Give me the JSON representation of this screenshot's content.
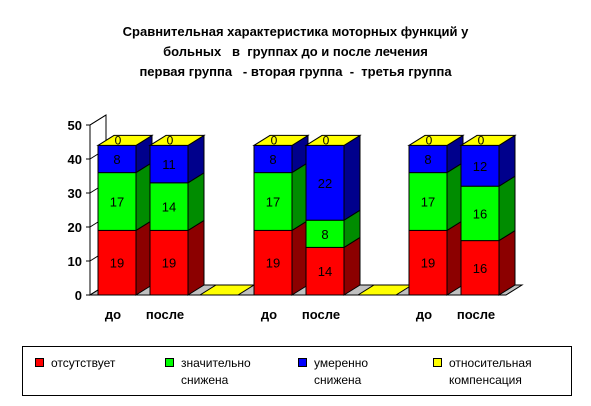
{
  "title_lines": [
    "Сравнительная характеристика моторных функций у",
    "больных   в  группах до и после лечения",
    "первая группа   - вторая группа  -  третья группа"
  ],
  "chart_data": {
    "type": "bar",
    "stacked": true,
    "three_d": true,
    "categories": [
      "до",
      "после",
      "",
      "до",
      "после",
      "",
      "до",
      "после"
    ],
    "series": [
      {
        "name": "отсутствует",
        "color": "#FF0000",
        "values": [
          19,
          19,
          0,
          19,
          14,
          0,
          19,
          16
        ]
      },
      {
        "name": "значительно снижена",
        "color": "#00FF00",
        "values": [
          17,
          14,
          0,
          17,
          8,
          0,
          17,
          16
        ]
      },
      {
        "name": "умеренно снижена",
        "color": "#0000FF",
        "values": [
          8,
          11,
          0,
          8,
          22,
          0,
          8,
          12
        ]
      },
      {
        "name": "относительная компенсация",
        "color": "#FFFF00",
        "values": [
          0,
          0,
          0,
          0,
          0,
          0,
          0,
          0
        ]
      }
    ],
    "y_ticks": [
      "0",
      "10",
      "20",
      "30",
      "40",
      "50"
    ],
    "ylim": [
      0,
      50
    ],
    "grid": false,
    "legend_position": "bottom"
  },
  "legend": [
    {
      "lines": [
        "отсутствует"
      ],
      "color": "#FF0000"
    },
    {
      "lines": [
        "значительно",
        "снижена"
      ],
      "color": "#00FF00"
    },
    {
      "lines": [
        "умеренно",
        "снижена"
      ],
      "color": "#0000FF"
    },
    {
      "lines": [
        "относительная",
        "компенсация"
      ],
      "color": "#FFFF00"
    }
  ]
}
